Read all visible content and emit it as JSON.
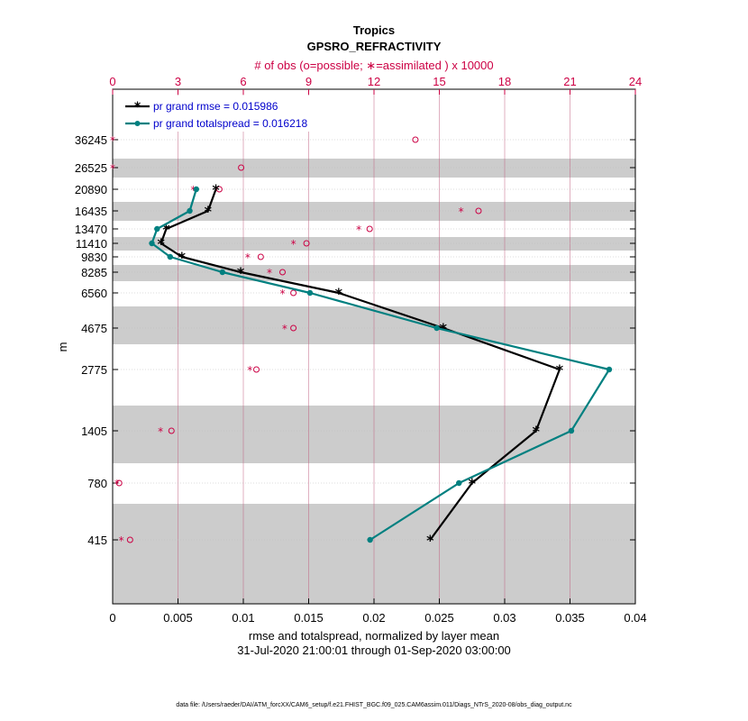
{
  "chart_data": {
    "type": "line",
    "title": "Tropics",
    "subtitle": "GPSRO_REFRACTIVITY",
    "top_axis_label": "# of obs (o=possible; ∗=assimilated ) x 10000",
    "xlabel": "rmse and totalspread, normalized by layer mean",
    "xlabel2": "31-Jul-2020 21:00:01 through 01-Sep-2020 03:00:00",
    "ylabel": "m",
    "footnote": "data file: /Users/raeder/DAI/ATM_forcXX/CAM6_setup/f.e21.FHIST_BGC.f09_025.CAM6assim.011/Diags_NTrS_2020-08/obs_diag_output.nc",
    "xlim": [
      0,
      0.04
    ],
    "x_ticks": [
      "0",
      "0.005",
      "0.01",
      "0.015",
      "0.02",
      "0.025",
      "0.03",
      "0.035",
      "0.04"
    ],
    "top_xlim": [
      0,
      24
    ],
    "top_ticks": [
      "0",
      "3",
      "6",
      "9",
      "12",
      "15",
      "18",
      "21",
      "24"
    ],
    "levels": [
      "415",
      "780",
      "1405",
      "2775",
      "4675",
      "6560",
      "8285",
      "9830",
      "11410",
      "13470",
      "16435",
      "20890",
      "26525",
      "36245"
    ],
    "legend_position": "top-left",
    "series": [
      {
        "name": "pr grand rmse = 0.015986",
        "color": "#000000",
        "marker": "star",
        "values": [
          {
            "level": "415",
            "x": 0.0243
          },
          {
            "level": "780",
            "x": 0.0275
          },
          {
            "level": "1405",
            "x": 0.0324
          },
          {
            "level": "2775",
            "x": 0.0342
          },
          {
            "level": "4675",
            "x": 0.0253
          },
          {
            "level": "6560",
            "x": 0.0173
          },
          {
            "level": "8285",
            "x": 0.0098
          },
          {
            "level": "9830",
            "x": 0.0053
          },
          {
            "level": "11410",
            "x": 0.0037
          },
          {
            "level": "13470",
            "x": 0.0041
          },
          {
            "level": "16435",
            "x": 0.0073
          },
          {
            "level": "20890",
            "x": 0.0079
          }
        ]
      },
      {
        "name": "pr grand totalspread = 0.016218",
        "color": "#008080",
        "marker": "circle",
        "values": [
          {
            "level": "415",
            "x": 0.0197
          },
          {
            "level": "780",
            "x": 0.0265
          },
          {
            "level": "1405",
            "x": 0.0351
          },
          {
            "level": "2775",
            "x": 0.038
          },
          {
            "level": "4675",
            "x": 0.0248
          },
          {
            "level": "6560",
            "x": 0.0151
          },
          {
            "level": "8285",
            "x": 0.0084
          },
          {
            "level": "9830",
            "x": 0.0044
          },
          {
            "level": "11410",
            "x": 0.003
          },
          {
            "level": "13470",
            "x": 0.0034
          },
          {
            "level": "16435",
            "x": 0.0059
          },
          {
            "level": "20890",
            "x": 0.0064
          }
        ]
      }
    ],
    "obs_possible": [
      {
        "level": "415",
        "n": 0.8
      },
      {
        "level": "780",
        "n": 0.3
      },
      {
        "level": "1405",
        "n": 2.7
      },
      {
        "level": "2775",
        "n": 6.6
      },
      {
        "level": "4675",
        "n": 8.3
      },
      {
        "level": "6560",
        "n": 8.3
      },
      {
        "level": "8285",
        "n": 7.8
      },
      {
        "level": "9830",
        "n": 6.8
      },
      {
        "level": "11410",
        "n": 8.9
      },
      {
        "level": "13470",
        "n": 11.8
      },
      {
        "level": "16435",
        "n": 16.8
      },
      {
        "level": "20890",
        "n": 4.9
      },
      {
        "level": "26525",
        "n": 5.9
      },
      {
        "level": "36245",
        "n": 13.9
      }
    ],
    "obs_assimilated": [
      {
        "level": "415",
        "n": 0.4
      },
      {
        "level": "780",
        "n": 0.2
      },
      {
        "level": "1405",
        "n": 2.2
      },
      {
        "level": "2775",
        "n": 6.3
      },
      {
        "level": "4675",
        "n": 7.9
      },
      {
        "level": "6560",
        "n": 7.8
      },
      {
        "level": "8285",
        "n": 7.2
      },
      {
        "level": "9830",
        "n": 6.2
      },
      {
        "level": "11410",
        "n": 8.3
      },
      {
        "level": "13470",
        "n": 11.3
      },
      {
        "level": "16435",
        "n": 16.0
      },
      {
        "level": "20890",
        "n": 3.7
      },
      {
        "level": "26525",
        "n": 0.0
      },
      {
        "level": "36245",
        "n": 0.0
      }
    ]
  }
}
